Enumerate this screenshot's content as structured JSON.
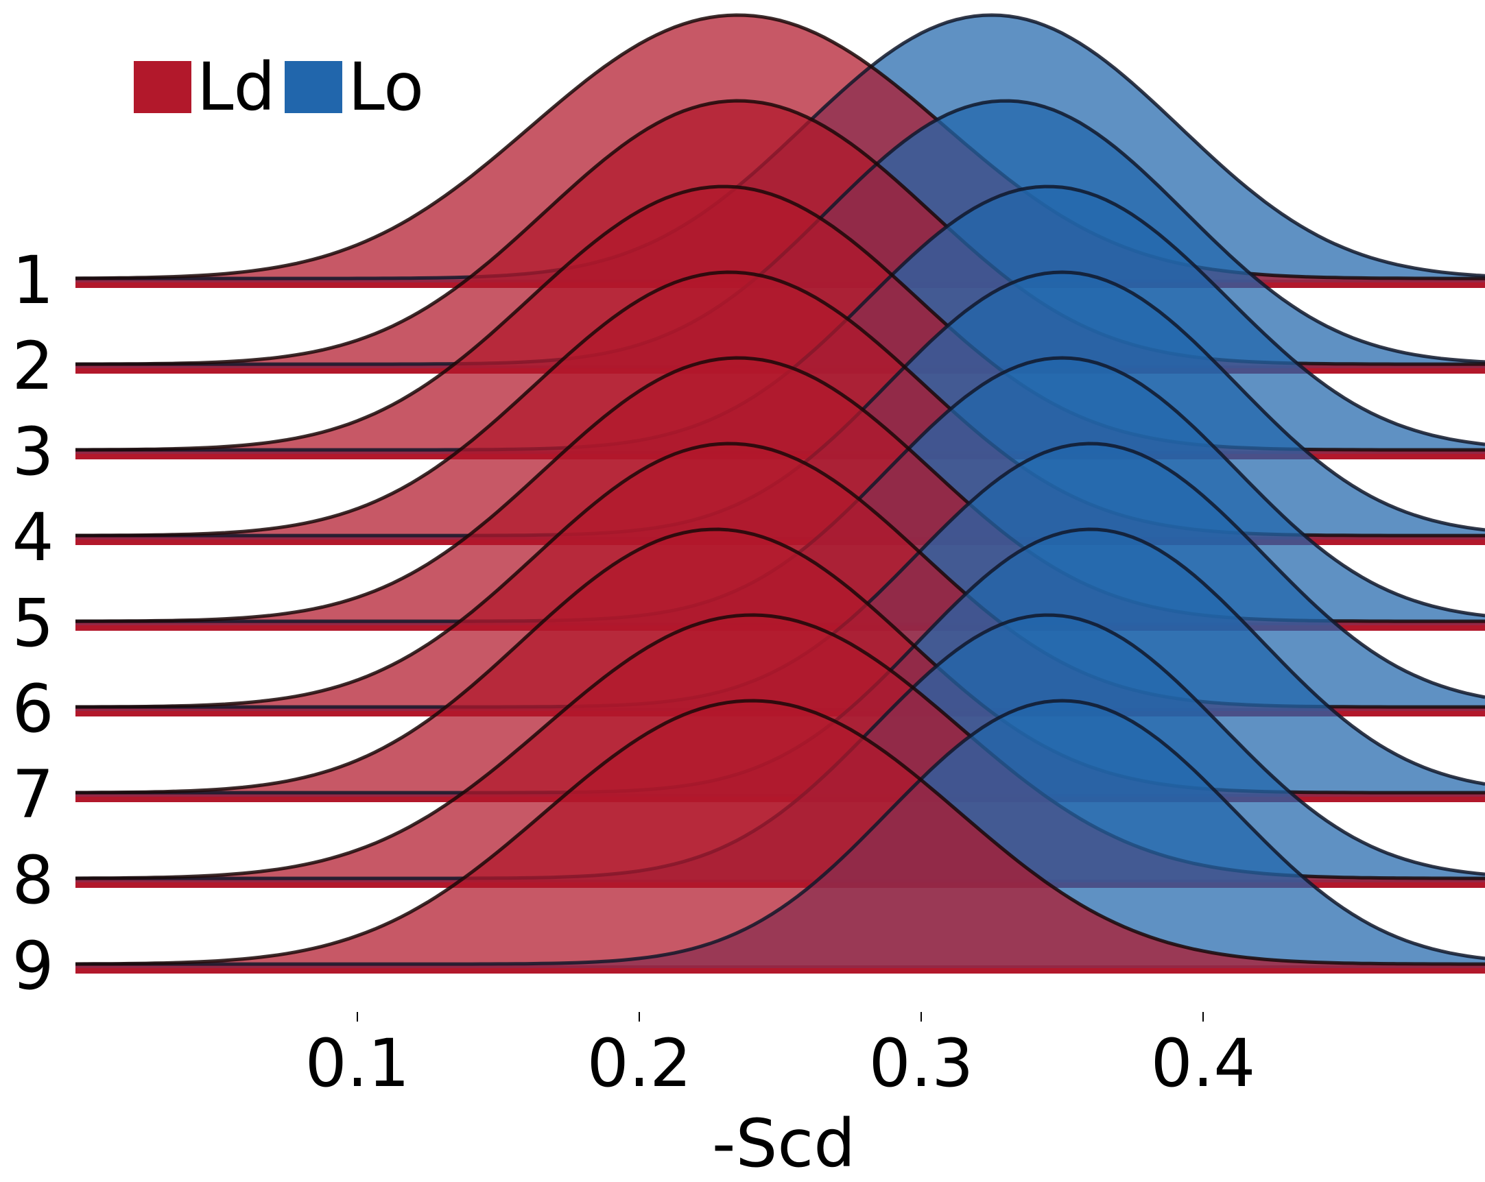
{
  "chart_data": {
    "type": "ridgeline",
    "xlabel": "-Scd",
    "x_ticks": [
      0.1,
      0.2,
      0.3,
      0.4
    ],
    "x_tick_labels": [
      "0.1",
      "0.2",
      "0.3",
      "0.4"
    ],
    "xlim": [
      0.0,
      0.5
    ],
    "row_labels": [
      "1",
      "2",
      "3",
      "4",
      "5",
      "6",
      "7",
      "8",
      "9"
    ],
    "legend_position": "top-left",
    "grid": false,
    "series": [
      {
        "name": "Ld",
        "color": "#b2182b",
        "mode": [
          0.235,
          0.235,
          0.23,
          0.232,
          0.235,
          0.232,
          0.227,
          0.24,
          0.24
        ],
        "spread": [
          0.075,
          0.07,
          0.07,
          0.07,
          0.07,
          0.07,
          0.07,
          0.075,
          0.075
        ]
      },
      {
        "name": "Lo",
        "color": "#2166ac",
        "mode": [
          0.325,
          0.33,
          0.345,
          0.35,
          0.35,
          0.36,
          0.36,
          0.345,
          0.35
        ],
        "spread": [
          0.068,
          0.065,
          0.065,
          0.063,
          0.063,
          0.063,
          0.062,
          0.063,
          0.063
        ]
      }
    ]
  },
  "legend": {
    "ld_label": "Ld",
    "lo_label": "Lo"
  }
}
